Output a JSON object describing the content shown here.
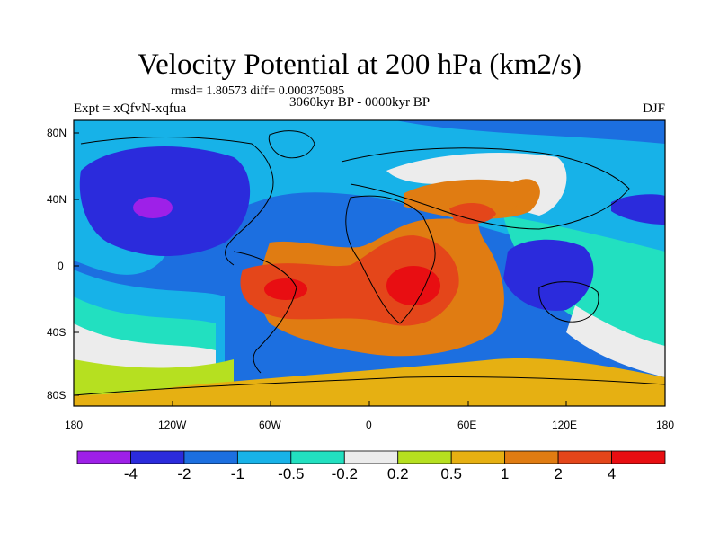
{
  "title": "Velocity Potential at 200 hPa (km2/s)",
  "stats": "rmsd= 1.80573  diff= 0.000375085",
  "experiment": "Expt = xQfvN-xqfua",
  "period": "3060kyr BP - 0000kyr BP",
  "season": "DJF",
  "lat_ticks": [
    "80N",
    "40N",
    "0",
    "40S",
    "80S"
  ],
  "lon_ticks": [
    "180",
    "120W",
    "60W",
    "0",
    "60E",
    "120E",
    "180"
  ],
  "colorbar": {
    "labels": [
      "-4",
      "-2",
      "-1",
      "-0.5",
      "-0.2",
      "0.2",
      "0.5",
      "1",
      "2",
      "4"
    ],
    "colors": [
      "#9e20e8",
      "#2b2bdc",
      "#1c6fe0",
      "#17b2e8",
      "#22e0c0",
      "#ececec",
      "#b6e020",
      "#e6b012",
      "#e07c12",
      "#e4461a",
      "#e80e12"
    ]
  }
}
